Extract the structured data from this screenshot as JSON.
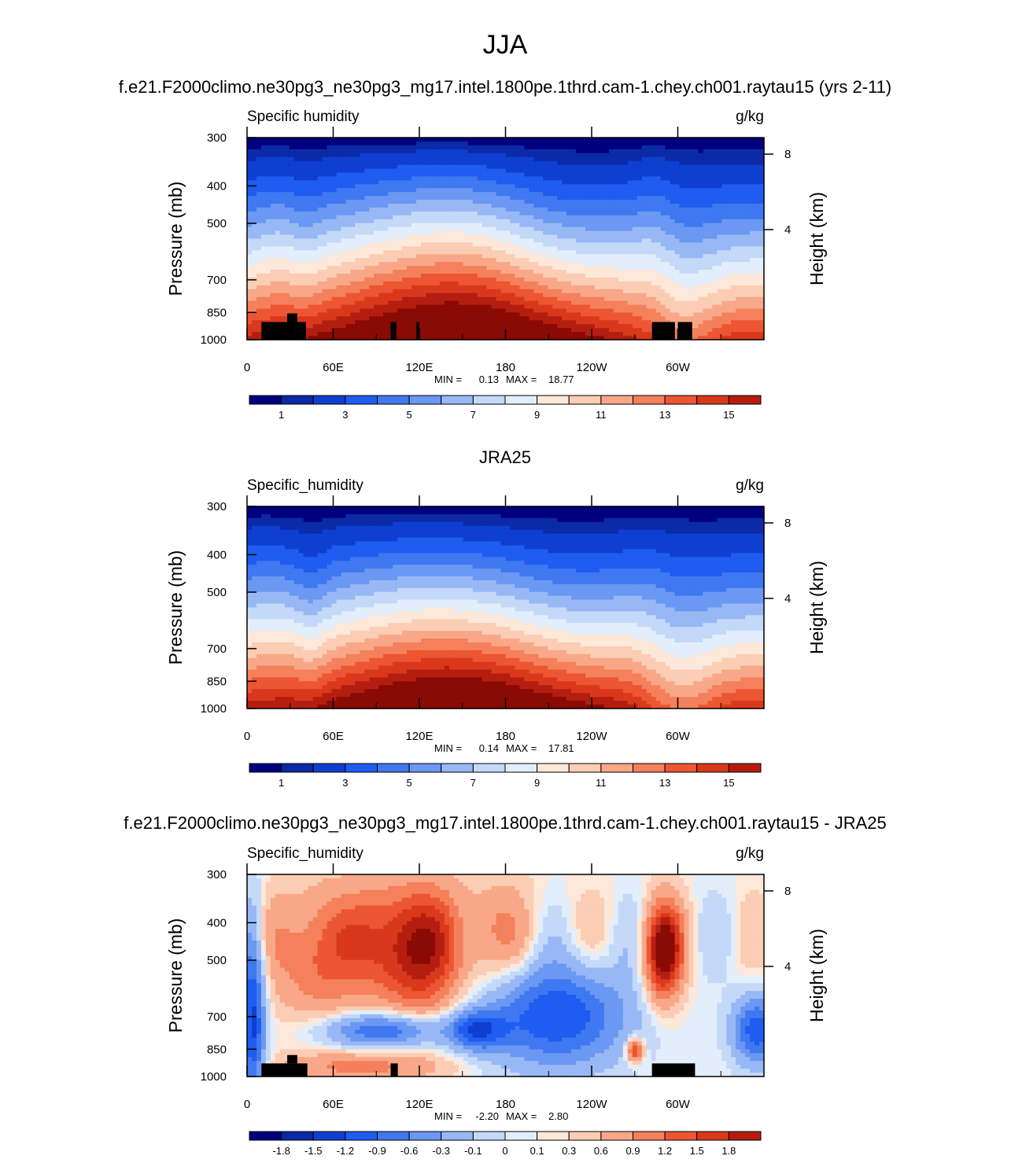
{
  "page": {
    "title": "JJA",
    "panel1_title": "f.e21.F2000climo.ne30pg3_ne30pg3_mg17.intel.1800pe.1thrd.cam-1.chey.ch001.raytau15 (yrs 2-11)",
    "panel2_title": "JRA25",
    "panel3_title": "f.e21.F2000climo.ne30pg3_ne30pg3_mg17.intel.1800pe.1thrd.cam-1.chey.ch001.raytau15 - JRA25"
  },
  "palettes": {
    "abs": [
      "#00007f",
      "#0b2aa7",
      "#0f3fd0",
      "#1f5cf0",
      "#3f78f0",
      "#6a98f2",
      "#98b8f5",
      "#c4d8f8",
      "#e2eefb",
      "#fde8da",
      "#fbcdb5",
      "#f8a888",
      "#f5805c",
      "#ec5632",
      "#d9381c",
      "#b41e10",
      "#8a0a04"
    ],
    "diff": [
      "#00007f",
      "#0b2aa7",
      "#0f3fd0",
      "#1f5cf0",
      "#3f78f0",
      "#6a98f2",
      "#98b8f5",
      "#c4d8f8",
      "#e2eefb",
      "#fde8da",
      "#fbcdb5",
      "#f8a888",
      "#f5805c",
      "#ec5632",
      "#d9381c",
      "#b41e10",
      "#8a0a04"
    ]
  },
  "chart_data": [
    {
      "type": "heatmap",
      "title": "f.e21.F2000climo.ne30pg3_ne30pg3_mg17.intel.1800pe.1thrd.cam-1.chey.ch001.raytau15 (yrs 2-11)",
      "left_label": "Specific humidity",
      "right_label": "g/kg",
      "ylabel": "Pressure (mb)",
      "y2label": "Height (km)",
      "yticks": [
        "300",
        "400",
        "500",
        "700",
        "850",
        "1000"
      ],
      "y2ticks": [
        "8",
        "4"
      ],
      "xticks": [
        "0",
        "60E",
        "120E",
        "180",
        "120W",
        "60W"
      ],
      "stats": {
        "min_label": "MIN =",
        "min": "0.13",
        "max_label": "MAX =",
        "max": "18.77"
      },
      "colorbar_labels": [
        "1",
        "3",
        "5",
        "7",
        "9",
        "11",
        "13",
        "15"
      ],
      "colorbar_levels": [
        0.5,
        1,
        2,
        3,
        4,
        5,
        6,
        7,
        8,
        9,
        10,
        11,
        12,
        13,
        14,
        15,
        16
      ],
      "mode": "abs",
      "humidity_extent": [
        0.13,
        18.77
      ]
    },
    {
      "type": "heatmap",
      "title": "JRA25",
      "left_label": "Specific_humidity",
      "right_label": "g/kg",
      "ylabel": "Pressure (mb)",
      "y2label": "Height (km)",
      "yticks": [
        "300",
        "400",
        "500",
        "700",
        "850",
        "1000"
      ],
      "y2ticks": [
        "8",
        "4"
      ],
      "xticks": [
        "0",
        "60E",
        "120E",
        "180",
        "120W",
        "60W"
      ],
      "stats": {
        "min_label": "MIN =",
        "min": "0.14",
        "max_label": "MAX =",
        "max": "17.81"
      },
      "colorbar_labels": [
        "1",
        "3",
        "5",
        "7",
        "9",
        "11",
        "13",
        "15"
      ],
      "colorbar_levels": [
        0.5,
        1,
        2,
        3,
        4,
        5,
        6,
        7,
        8,
        9,
        10,
        11,
        12,
        13,
        14,
        15,
        16
      ],
      "mode": "abs",
      "humidity_extent": [
        0.14,
        17.81
      ]
    },
    {
      "type": "heatmap",
      "title": "f.e21.F2000climo.ne30pg3_ne30pg3_mg17.intel.1800pe.1thrd.cam-1.chey.ch001.raytau15 - JRA25",
      "left_label": "Specific_humidity",
      "right_label": "g/kg",
      "ylabel": "Pressure (mb)",
      "y2label": "Height (km)",
      "yticks": [
        "300",
        "400",
        "500",
        "700",
        "850",
        "1000"
      ],
      "y2ticks": [
        "8",
        "4"
      ],
      "xticks": [
        "0",
        "60E",
        "120E",
        "180",
        "120W",
        "60W"
      ],
      "stats": {
        "min_label": "MIN =",
        "min": "-2.20",
        "max_label": "MAX =",
        "max": "2.80"
      },
      "colorbar_labels": [
        "-1.8",
        "-1.5",
        "-1.2",
        "-0.9",
        "-0.6",
        "-0.3",
        "-0.1",
        "0",
        "0.1",
        "0.3",
        "0.6",
        "0.9",
        "1.2",
        "1.5",
        "1.8"
      ],
      "colorbar_levels": [
        -2.1,
        -1.8,
        -1.5,
        -1.2,
        -0.9,
        -0.6,
        -0.3,
        -0.1,
        0,
        0.1,
        0.3,
        0.6,
        0.9,
        1.2,
        1.5,
        1.8,
        2.1
      ],
      "mode": "diff",
      "humidity_extent": [
        -2.2,
        2.8
      ]
    }
  ]
}
